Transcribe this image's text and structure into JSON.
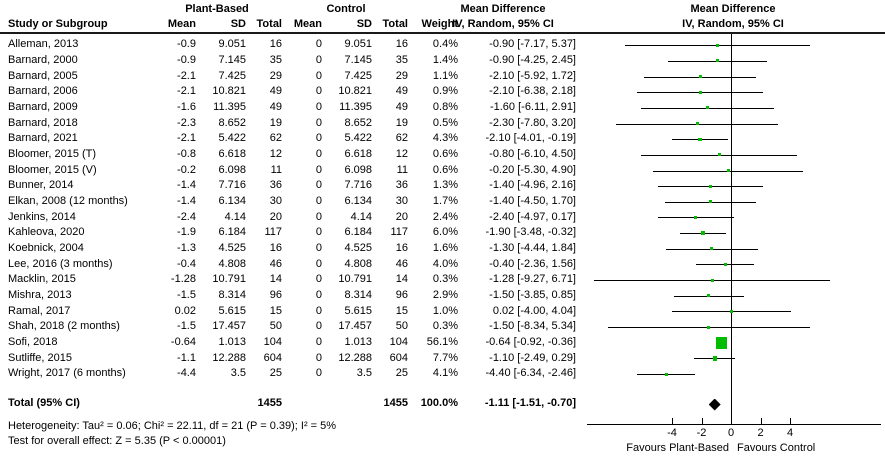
{
  "header": {
    "group_plant": "Plant-Based",
    "group_control": "Control",
    "md_left": "Mean Difference",
    "md_right": "Mean Difference",
    "study_col": "Study or Subgroup",
    "mean_col": "Mean",
    "sd_col": "SD",
    "total_col": "Total",
    "c_mean_col": "Mean",
    "c_sd_col": "SD",
    "c_total_col": "Total",
    "weight_col": "Weight",
    "ci_left_col": "IV, Random, 95% CI",
    "ci_right_col": "IV, Random, 95% CI"
  },
  "chart_data": {
    "type": "forest",
    "effect_measure": "Mean Difference, IV, Random, 95% CI",
    "studies": [
      {
        "name": "Alleman, 2013",
        "mean": "-0.9",
        "sd": "9.051",
        "total": "16",
        "c_mean": "0",
        "c_sd": "9.051",
        "c_total": "16",
        "weight": "0.4%",
        "ci_label": "-0.90 [-7.17, 5.37]",
        "est": -0.9,
        "lo": -7.17,
        "hi": 5.37
      },
      {
        "name": "Barnard, 2000",
        "mean": "-0.9",
        "sd": "7.145",
        "total": "35",
        "c_mean": "0",
        "c_sd": "7.145",
        "c_total": "35",
        "weight": "1.4%",
        "ci_label": "-0.90 [-4.25, 2.45]",
        "est": -0.9,
        "lo": -4.25,
        "hi": 2.45
      },
      {
        "name": "Barnard, 2005",
        "mean": "-2.1",
        "sd": "7.425",
        "total": "29",
        "c_mean": "0",
        "c_sd": "7.425",
        "c_total": "29",
        "weight": "1.1%",
        "ci_label": "-2.10 [-5.92, 1.72]",
        "est": -2.1,
        "lo": -5.92,
        "hi": 1.72
      },
      {
        "name": "Barnard, 2006",
        "mean": "-2.1",
        "sd": "10.821",
        "total": "49",
        "c_mean": "0",
        "c_sd": "10.821",
        "c_total": "49",
        "weight": "0.9%",
        "ci_label": "-2.10 [-6.38, 2.18]",
        "est": -2.1,
        "lo": -6.38,
        "hi": 2.18
      },
      {
        "name": "Barnard, 2009",
        "mean": "-1.6",
        "sd": "11.395",
        "total": "49",
        "c_mean": "0",
        "c_sd": "11.395",
        "c_total": "49",
        "weight": "0.8%",
        "ci_label": "-1.60 [-6.11, 2.91]",
        "est": -1.6,
        "lo": -6.11,
        "hi": 2.91
      },
      {
        "name": "Barnard, 2018",
        "mean": "-2.3",
        "sd": "8.652",
        "total": "19",
        "c_mean": "0",
        "c_sd": "8.652",
        "c_total": "19",
        "weight": "0.5%",
        "ci_label": "-2.30 [-7.80, 3.20]",
        "est": -2.3,
        "lo": -7.8,
        "hi": 3.2
      },
      {
        "name": "Barnard, 2021",
        "mean": "-2.1",
        "sd": "5.422",
        "total": "62",
        "c_mean": "0",
        "c_sd": "5.422",
        "c_total": "62",
        "weight": "4.3%",
        "ci_label": "-2.10 [-4.01, -0.19]",
        "est": -2.1,
        "lo": -4.01,
        "hi": -0.19
      },
      {
        "name": "Bloomer, 2015 (T)",
        "mean": "-0.8",
        "sd": "6.618",
        "total": "12",
        "c_mean": "0",
        "c_sd": "6.618",
        "c_total": "12",
        "weight": "0.6%",
        "ci_label": "-0.80 [-6.10, 4.50]",
        "est": -0.8,
        "lo": -6.1,
        "hi": 4.5
      },
      {
        "name": "Bloomer, 2015 (V)",
        "mean": "-0.2",
        "sd": "6.098",
        "total": "11",
        "c_mean": "0",
        "c_sd": "6.098",
        "c_total": "11",
        "weight": "0.6%",
        "ci_label": "-0.20 [-5.30, 4.90]",
        "est": -0.2,
        "lo": -5.3,
        "hi": 4.9
      },
      {
        "name": "Bunner, 2014",
        "mean": "-1.4",
        "sd": "7.716",
        "total": "36",
        "c_mean": "0",
        "c_sd": "7.716",
        "c_total": "36",
        "weight": "1.3%",
        "ci_label": "-1.40 [-4.96, 2.16]",
        "est": -1.4,
        "lo": -4.96,
        "hi": 2.16
      },
      {
        "name": "Elkan, 2008 (12 months)",
        "mean": "-1.4",
        "sd": "6.134",
        "total": "30",
        "c_mean": "0",
        "c_sd": "6.134",
        "c_total": "30",
        "weight": "1.7%",
        "ci_label": "-1.40 [-4.50, 1.70]",
        "est": -1.4,
        "lo": -4.5,
        "hi": 1.7
      },
      {
        "name": "Jenkins, 2014",
        "mean": "-2.4",
        "sd": "4.14",
        "total": "20",
        "c_mean": "0",
        "c_sd": "4.14",
        "c_total": "20",
        "weight": "2.4%",
        "ci_label": "-2.40 [-4.97, 0.17]",
        "est": -2.4,
        "lo": -4.97,
        "hi": 0.17
      },
      {
        "name": "Kahleova, 2020",
        "mean": "-1.9",
        "sd": "6.184",
        "total": "117",
        "c_mean": "0",
        "c_sd": "6.184",
        "c_total": "117",
        "weight": "6.0%",
        "ci_label": "-1.90 [-3.48, -0.32]",
        "est": -1.9,
        "lo": -3.48,
        "hi": -0.32
      },
      {
        "name": "Koebnick, 2004",
        "mean": "-1.3",
        "sd": "4.525",
        "total": "16",
        "c_mean": "0",
        "c_sd": "4.525",
        "c_total": "16",
        "weight": "1.6%",
        "ci_label": "-1.30 [-4.44, 1.84]",
        "est": -1.3,
        "lo": -4.44,
        "hi": 1.84
      },
      {
        "name": "Lee, 2016 (3 months)",
        "mean": "-0.4",
        "sd": "4.808",
        "total": "46",
        "c_mean": "0",
        "c_sd": "4.808",
        "c_total": "46",
        "weight": "4.0%",
        "ci_label": "-0.40 [-2.36, 1.56]",
        "est": -0.4,
        "lo": -2.36,
        "hi": 1.56
      },
      {
        "name": "Macklin, 2015",
        "mean": "-1.28",
        "sd": "10.791",
        "total": "14",
        "c_mean": "0",
        "c_sd": "10.791",
        "c_total": "14",
        "weight": "0.3%",
        "ci_label": "-1.28 [-9.27, 6.71]",
        "est": -1.28,
        "lo": -9.27,
        "hi": 6.71
      },
      {
        "name": "Mishra, 2013",
        "mean": "-1.5",
        "sd": "8.314",
        "total": "96",
        "c_mean": "0",
        "c_sd": "8.314",
        "c_total": "96",
        "weight": "2.9%",
        "ci_label": "-1.50 [-3.85, 0.85]",
        "est": -1.5,
        "lo": -3.85,
        "hi": 0.85
      },
      {
        "name": "Ramal, 2017",
        "mean": "0.02",
        "sd": "5.615",
        "total": "15",
        "c_mean": "0",
        "c_sd": "5.615",
        "c_total": "15",
        "weight": "1.0%",
        "ci_label": "0.02 [-4.00, 4.04]",
        "est": 0.02,
        "lo": -4.0,
        "hi": 4.04
      },
      {
        "name": "Shah, 2018 (2 months)",
        "mean": "-1.5",
        "sd": "17.457",
        "total": "50",
        "c_mean": "0",
        "c_sd": "17.457",
        "c_total": "50",
        "weight": "0.3%",
        "ci_label": "-1.50 [-8.34, 5.34]",
        "est": -1.5,
        "lo": -8.34,
        "hi": 5.34
      },
      {
        "name": "Sofi, 2018",
        "mean": "-0.64",
        "sd": "1.013",
        "total": "104",
        "c_mean": "0",
        "c_sd": "1.013",
        "c_total": "104",
        "weight": "56.1%",
        "ci_label": "-0.64 [-0.92, -0.36]",
        "est": -0.64,
        "lo": -0.92,
        "hi": -0.36
      },
      {
        "name": "Sutliffe, 2015",
        "mean": "-1.1",
        "sd": "12.288",
        "total": "604",
        "c_mean": "0",
        "c_sd": "12.288",
        "c_total": "604",
        "weight": "7.7%",
        "ci_label": "-1.10 [-2.49, 0.29]",
        "est": -1.1,
        "lo": -2.49,
        "hi": 0.29
      },
      {
        "name": "Wright, 2017 (6 months)",
        "mean": "-4.4",
        "sd": "3.5",
        "total": "25",
        "c_mean": "0",
        "c_sd": "3.5",
        "c_total": "25",
        "weight": "4.1%",
        "ci_label": "-4.40 [-6.34, -2.46]",
        "est": -4.4,
        "lo": -6.34,
        "hi": -2.46
      }
    ],
    "total": {
      "label": "Total (95% CI)",
      "total": "1455",
      "c_total": "1455",
      "weight": "100.0%",
      "ci_label": "-1.11 [-1.51, -0.70]",
      "est": -1.11,
      "lo": -1.51,
      "hi": -0.7
    },
    "heterogeneity": "Heterogeneity: Tau² = 0.06; Chi² = 22.11, df = 21 (P = 0.39); I² = 5%",
    "overall_effect": "Test for overall effect: Z = 5.35 (P < 0.00001)",
    "axis": {
      "ticks": [
        -4,
        -2,
        0,
        2,
        4
      ],
      "xmin": -9.8,
      "xmax": 10.2,
      "favours_left": "Favours Plant-Based",
      "favours_right": "Favours Control"
    },
    "colors": {
      "square": "#00bd00",
      "diamond": "#000000",
      "line": "#000000"
    }
  }
}
